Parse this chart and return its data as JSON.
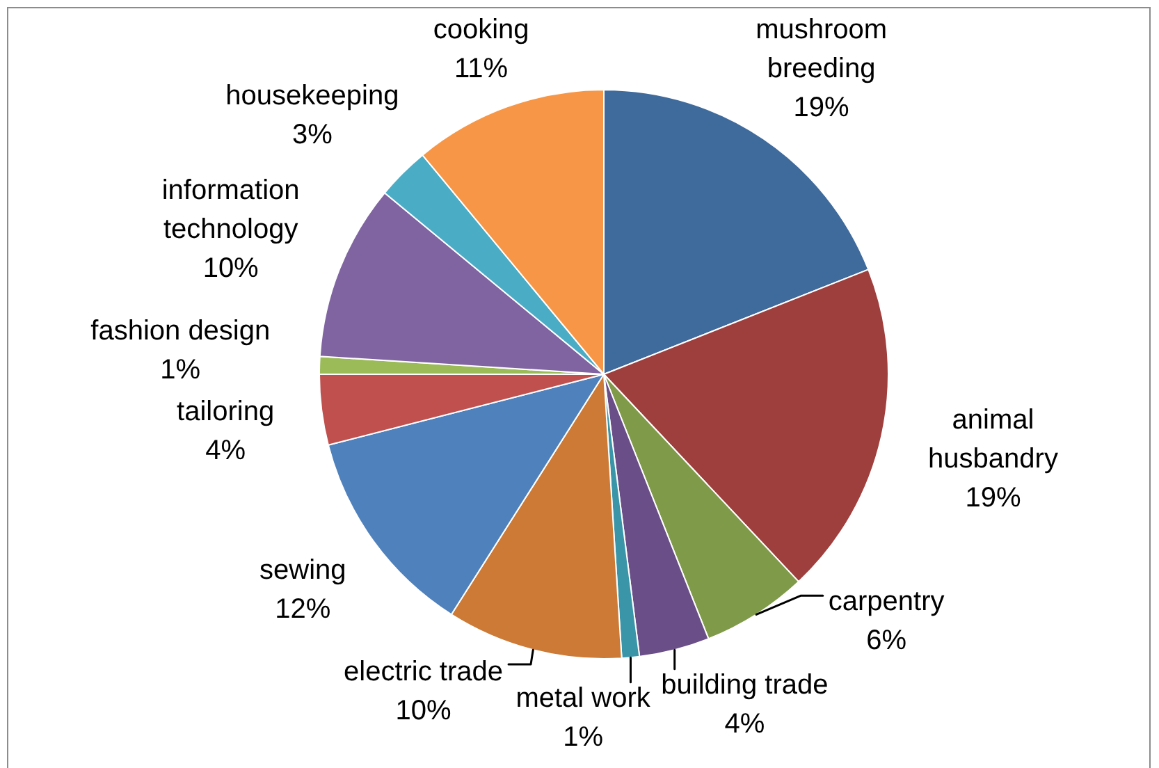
{
  "chart_data": {
    "type": "pie",
    "categories": [
      "mushroom breeding",
      "animal husbandry",
      "carpentry",
      "building trade",
      "metal work",
      "electric trade",
      "sewing",
      "tailoring",
      "fashion design",
      "information technology",
      "housekeeping",
      "cooking"
    ],
    "values": [
      19,
      19,
      6,
      4,
      1,
      10,
      12,
      4,
      1,
      10,
      3,
      11
    ],
    "value_labels": [
      "19%",
      "19%",
      "6%",
      "4%",
      "1%",
      "10%",
      "12%",
      "4%",
      "1%",
      "10%",
      "3%",
      "11%"
    ],
    "colors": [
      "#3f6a9c",
      "#9e3f3d",
      "#7f9a48",
      "#6a4e88",
      "#3a95a8",
      "#cc7a35",
      "#4f81bd",
      "#c0504d",
      "#9bbb59",
      "#8064a2",
      "#4bacc6",
      "#f79646"
    ]
  }
}
